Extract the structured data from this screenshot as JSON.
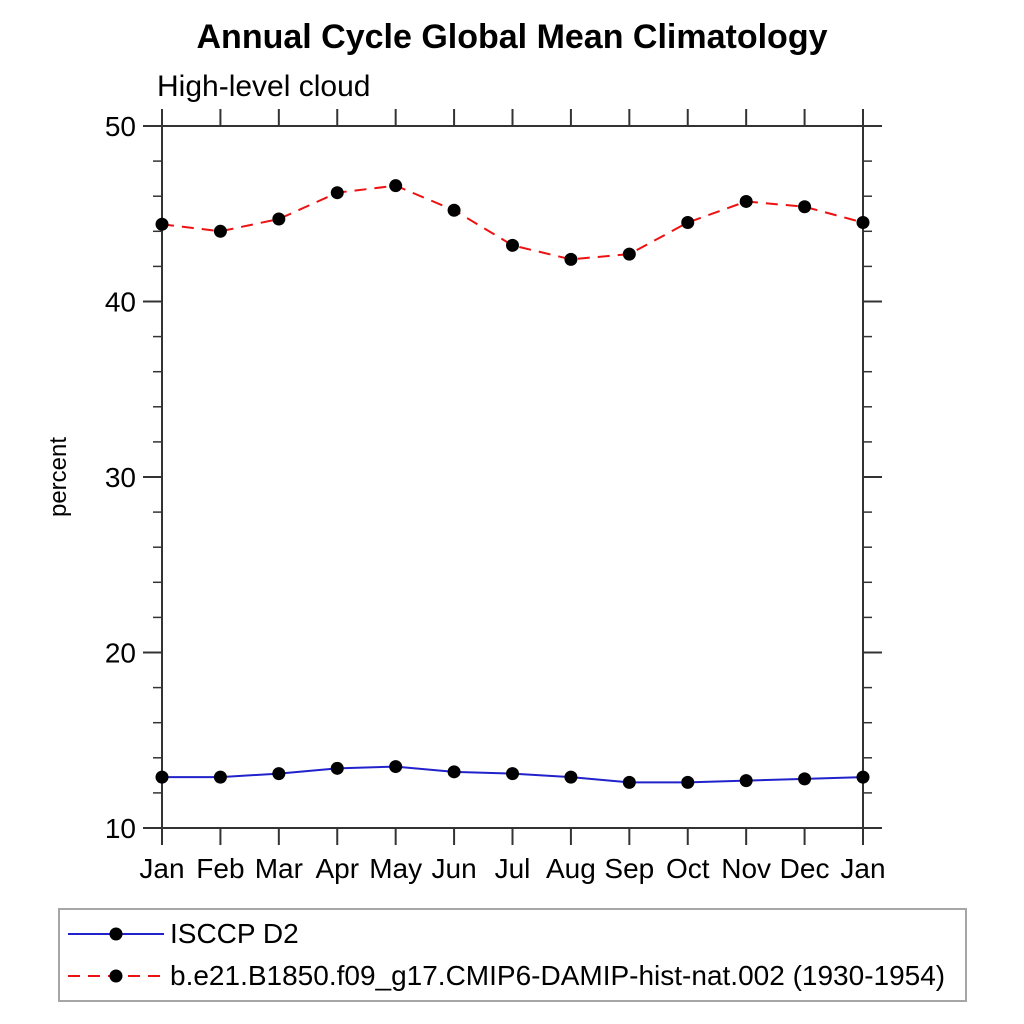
{
  "page": {
    "background": "#ffffff"
  },
  "chart_data": {
    "type": "line",
    "title": "Annual Cycle Global Mean Climatology",
    "subtitle": "High-level cloud",
    "xlabel": "",
    "ylabel": "percent",
    "ylim": [
      10,
      50
    ],
    "yticks_major": [
      10,
      20,
      30,
      40,
      50
    ],
    "ytick_minor_step": 2,
    "grid": false,
    "legend_position": "bottom-left",
    "axis_color": "#333333",
    "categories": [
      "Jan",
      "Feb",
      "Mar",
      "Apr",
      "May",
      "Jun",
      "Jul",
      "Aug",
      "Sep",
      "Oct",
      "Nov",
      "Dec",
      "Jan"
    ],
    "series": [
      {
        "name": "ISCCP D2",
        "line_style": "solid",
        "color": "#2222cc",
        "marker": "filled-circle",
        "marker_color": "#000000",
        "values": [
          12.9,
          12.9,
          13.1,
          13.4,
          13.5,
          13.2,
          13.1,
          12.9,
          12.6,
          12.6,
          12.7,
          12.8,
          12.9
        ]
      },
      {
        "name": "b.e21.B1850.f09_g17.CMIP6-DAMIP-hist-nat.002 (1930-1954)",
        "line_style": "dashed",
        "color": "#ee1111",
        "marker": "filled-circle",
        "marker_color": "#000000",
        "values": [
          44.4,
          44.0,
          44.7,
          46.2,
          46.6,
          45.2,
          43.2,
          42.4,
          42.7,
          44.5,
          45.7,
          45.4,
          44.5
        ]
      }
    ]
  }
}
